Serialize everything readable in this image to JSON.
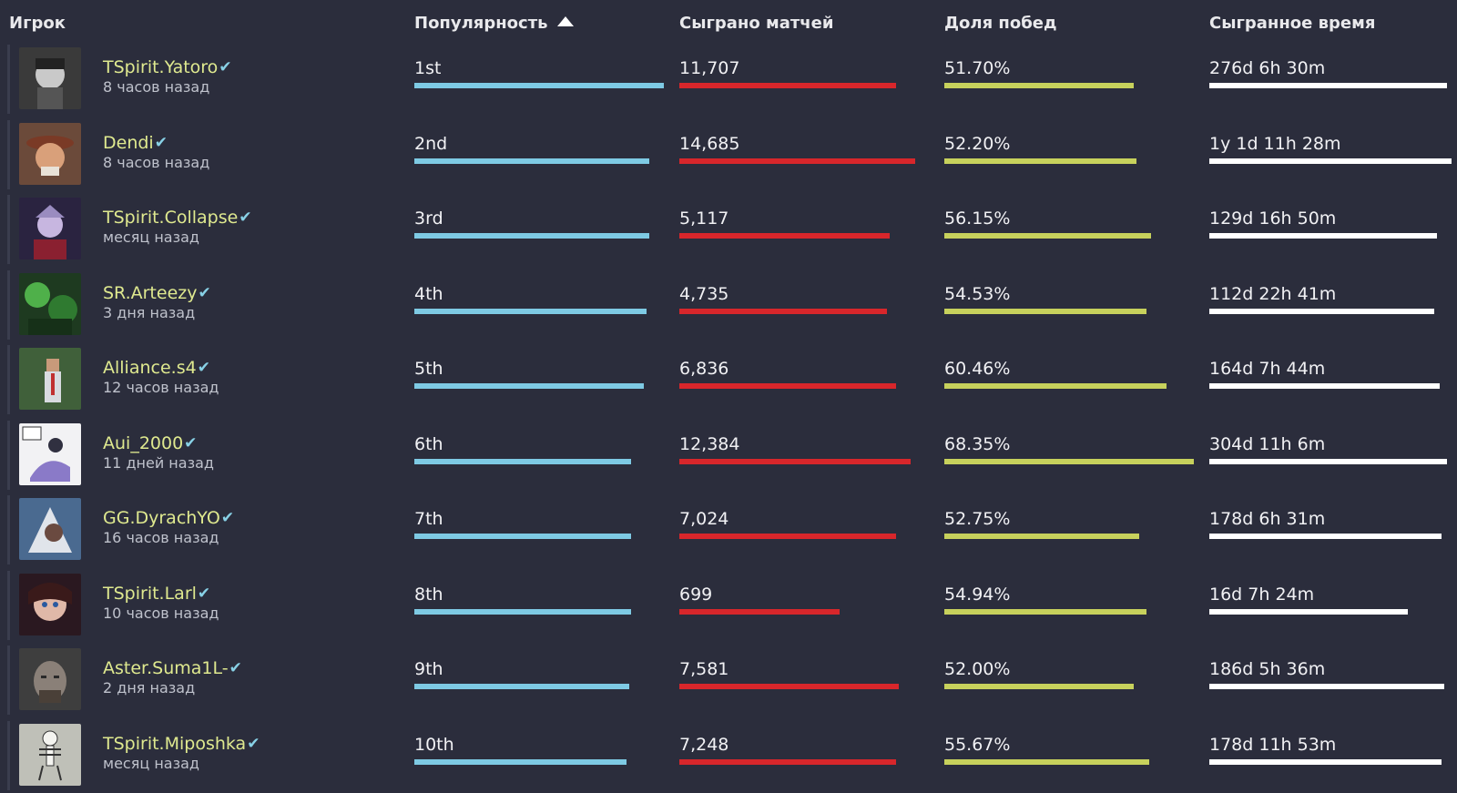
{
  "columns": {
    "player": "Игрок",
    "popularity": "Популярность",
    "matches": "Сыграно матчей",
    "winrate": "Доля побед",
    "time": "Сыгранное время"
  },
  "sort": {
    "column": "popularity",
    "direction": "ascending",
    "icon": "triangle-up-icon"
  },
  "colors": {
    "background": "#2b2d3c",
    "player_name": "#dfe98f",
    "verified": "#88d1e6",
    "popularity_bar": "#7ecae4",
    "matches_bar": "#d8262b",
    "winrate_bar": "#c7d15c",
    "time_bar": "#ffffff"
  },
  "players": [
    {
      "name": "TSpirit.Yatoro",
      "verified": true,
      "last_seen": "8 часов назад",
      "rank": "1st",
      "matches": "11,707",
      "winrate": "51.70%",
      "time": "276d 6h 30m",
      "bars": {
        "popularity": 1.0,
        "matches": 0.92,
        "winrate": 0.76,
        "time": 0.98
      }
    },
    {
      "name": "Dendi",
      "verified": true,
      "last_seen": "8 часов назад",
      "rank": "2nd",
      "matches": "14,685",
      "winrate": "52.20%",
      "time": "1y 1d 11h 28m",
      "bars": {
        "popularity": 0.94,
        "matches": 1.0,
        "winrate": 0.77,
        "time": 1.0
      }
    },
    {
      "name": "TSpirit.Collapse",
      "verified": true,
      "last_seen": "месяц назад",
      "rank": "3rd",
      "matches": "5,117",
      "winrate": "56.15%",
      "time": "129d 16h 50m",
      "bars": {
        "popularity": 0.94,
        "matches": 0.89,
        "winrate": 0.83,
        "time": 0.94
      }
    },
    {
      "name": "SR.Arteezy",
      "verified": true,
      "last_seen": "3 дня назад",
      "rank": "4th",
      "matches": "4,735",
      "winrate": "54.53%",
      "time": "112d 22h 41m",
      "bars": {
        "popularity": 0.93,
        "matches": 0.88,
        "winrate": 0.81,
        "time": 0.93
      }
    },
    {
      "name": "Alliance.s4",
      "verified": true,
      "last_seen": "12 часов назад",
      "rank": "5th",
      "matches": "6,836",
      "winrate": "60.46%",
      "time": "164d 7h 44m",
      "bars": {
        "popularity": 0.92,
        "matches": 0.92,
        "winrate": 0.89,
        "time": 0.95
      }
    },
    {
      "name": "Aui_2000",
      "verified": true,
      "last_seen": "11 дней назад",
      "rank": "6th",
      "matches": "12,384",
      "winrate": "68.35%",
      "time": "304d 11h 6m",
      "bars": {
        "popularity": 0.87,
        "matches": 0.98,
        "winrate": 1.0,
        "time": 0.98
      }
    },
    {
      "name": "GG.DyrachYO",
      "verified": true,
      "last_seen": "16 часов назад",
      "rank": "7th",
      "matches": "7,024",
      "winrate": "52.75%",
      "time": "178d 6h 31m",
      "bars": {
        "popularity": 0.87,
        "matches": 0.92,
        "winrate": 0.78,
        "time": 0.96
      }
    },
    {
      "name": "TSpirit.Larl",
      "verified": true,
      "last_seen": "10 часов назад",
      "rank": "8th",
      "matches": "699",
      "winrate": "54.94%",
      "time": "16d 7h 24m",
      "bars": {
        "popularity": 0.87,
        "matches": 0.68,
        "winrate": 0.81,
        "time": 0.82
      }
    },
    {
      "name": "Aster.Suma1L-",
      "verified": true,
      "last_seen": "2 дня назад",
      "rank": "9th",
      "matches": "7,581",
      "winrate": "52.00%",
      "time": "186d 5h 36m",
      "bars": {
        "popularity": 0.86,
        "matches": 0.93,
        "winrate": 0.76,
        "time": 0.97
      }
    },
    {
      "name": "TSpirit.Miposhka",
      "verified": true,
      "last_seen": "месяц назад",
      "rank": "10th",
      "matches": "7,248",
      "winrate": "55.67%",
      "time": "178d 11h 53m",
      "bars": {
        "popularity": 0.85,
        "matches": 0.92,
        "winrate": 0.82,
        "time": 0.96
      }
    }
  ]
}
